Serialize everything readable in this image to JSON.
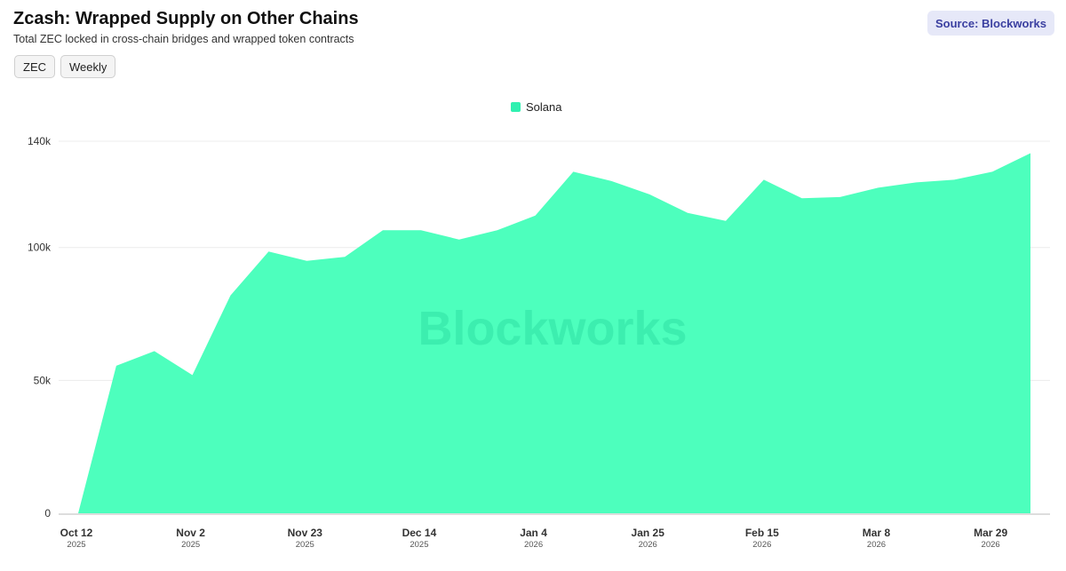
{
  "header": {
    "title": "Zcash: Wrapped Supply on Other Chains",
    "subtitle": "Total ZEC locked in cross-chain bridges and wrapped token contracts",
    "source": "Source: Blockworks"
  },
  "chips": [
    "ZEC",
    "Weekly"
  ],
  "watermark": "Blockworks",
  "colors": {
    "area": "#4dffbd",
    "legend_swatch": "#2ff0b0",
    "grid": "#ececec",
    "axis": "#bbbbbb",
    "watermark": "#2fe0a4"
  },
  "chart_data": {
    "type": "area",
    "x_axis": "date",
    "ylim": [
      0,
      140000
    ],
    "grid": true,
    "legend_placement": "top-center",
    "y_ticks": [
      {
        "value": 0,
        "label": "0"
      },
      {
        "value": 50000,
        "label": "50k"
      },
      {
        "value": 100000,
        "label": "100k"
      },
      {
        "value": 140000,
        "label": "140k"
      }
    ],
    "x_ticks": [
      {
        "date": "2025-10-12",
        "label": "Oct 12",
        "year": "2025"
      },
      {
        "date": "2025-11-02",
        "label": "Nov 2",
        "year": "2025"
      },
      {
        "date": "2025-11-23",
        "label": "Nov 23",
        "year": "2025"
      },
      {
        "date": "2025-12-14",
        "label": "Dec 14",
        "year": "2025"
      },
      {
        "date": "2026-01-04",
        "label": "Jan 4",
        "year": "2026"
      },
      {
        "date": "2026-01-25",
        "label": "Jan 25",
        "year": "2026"
      },
      {
        "date": "2026-02-15",
        "label": "Feb 15",
        "year": "2026"
      },
      {
        "date": "2026-03-08",
        "label": "Mar 8",
        "year": "2026"
      },
      {
        "date": "2026-03-29",
        "label": "Mar 29",
        "year": "2026"
      }
    ],
    "series": [
      {
        "name": "Solana",
        "points": [
          {
            "x": "2025-10-12",
            "y": 0
          },
          {
            "x": "2025-10-19",
            "y": 55500
          },
          {
            "x": "2025-10-26",
            "y": 61000
          },
          {
            "x": "2025-11-02",
            "y": 52000
          },
          {
            "x": "2025-11-09",
            "y": 82000
          },
          {
            "x": "2025-11-16",
            "y": 98500
          },
          {
            "x": "2025-11-23",
            "y": 95000
          },
          {
            "x": "2025-11-30",
            "y": 96500
          },
          {
            "x": "2025-12-07",
            "y": 106500
          },
          {
            "x": "2025-12-14",
            "y": 106500
          },
          {
            "x": "2025-12-21",
            "y": 103000
          },
          {
            "x": "2025-12-28",
            "y": 106500
          },
          {
            "x": "2026-01-04",
            "y": 112000
          },
          {
            "x": "2026-01-11",
            "y": 128500
          },
          {
            "x": "2026-01-18",
            "y": 125000
          },
          {
            "x": "2026-01-25",
            "y": 120000
          },
          {
            "x": "2026-02-01",
            "y": 113000
          },
          {
            "x": "2026-02-08",
            "y": 110000
          },
          {
            "x": "2026-02-15",
            "y": 125500
          },
          {
            "x": "2026-02-22",
            "y": 118500
          },
          {
            "x": "2026-03-01",
            "y": 119000
          },
          {
            "x": "2026-03-08",
            "y": 122500
          },
          {
            "x": "2026-03-15",
            "y": 124500
          },
          {
            "x": "2026-03-22",
            "y": 125500
          },
          {
            "x": "2026-03-29",
            "y": 128500
          },
          {
            "x": "2026-04-05",
            "y": 135500
          }
        ]
      }
    ]
  }
}
